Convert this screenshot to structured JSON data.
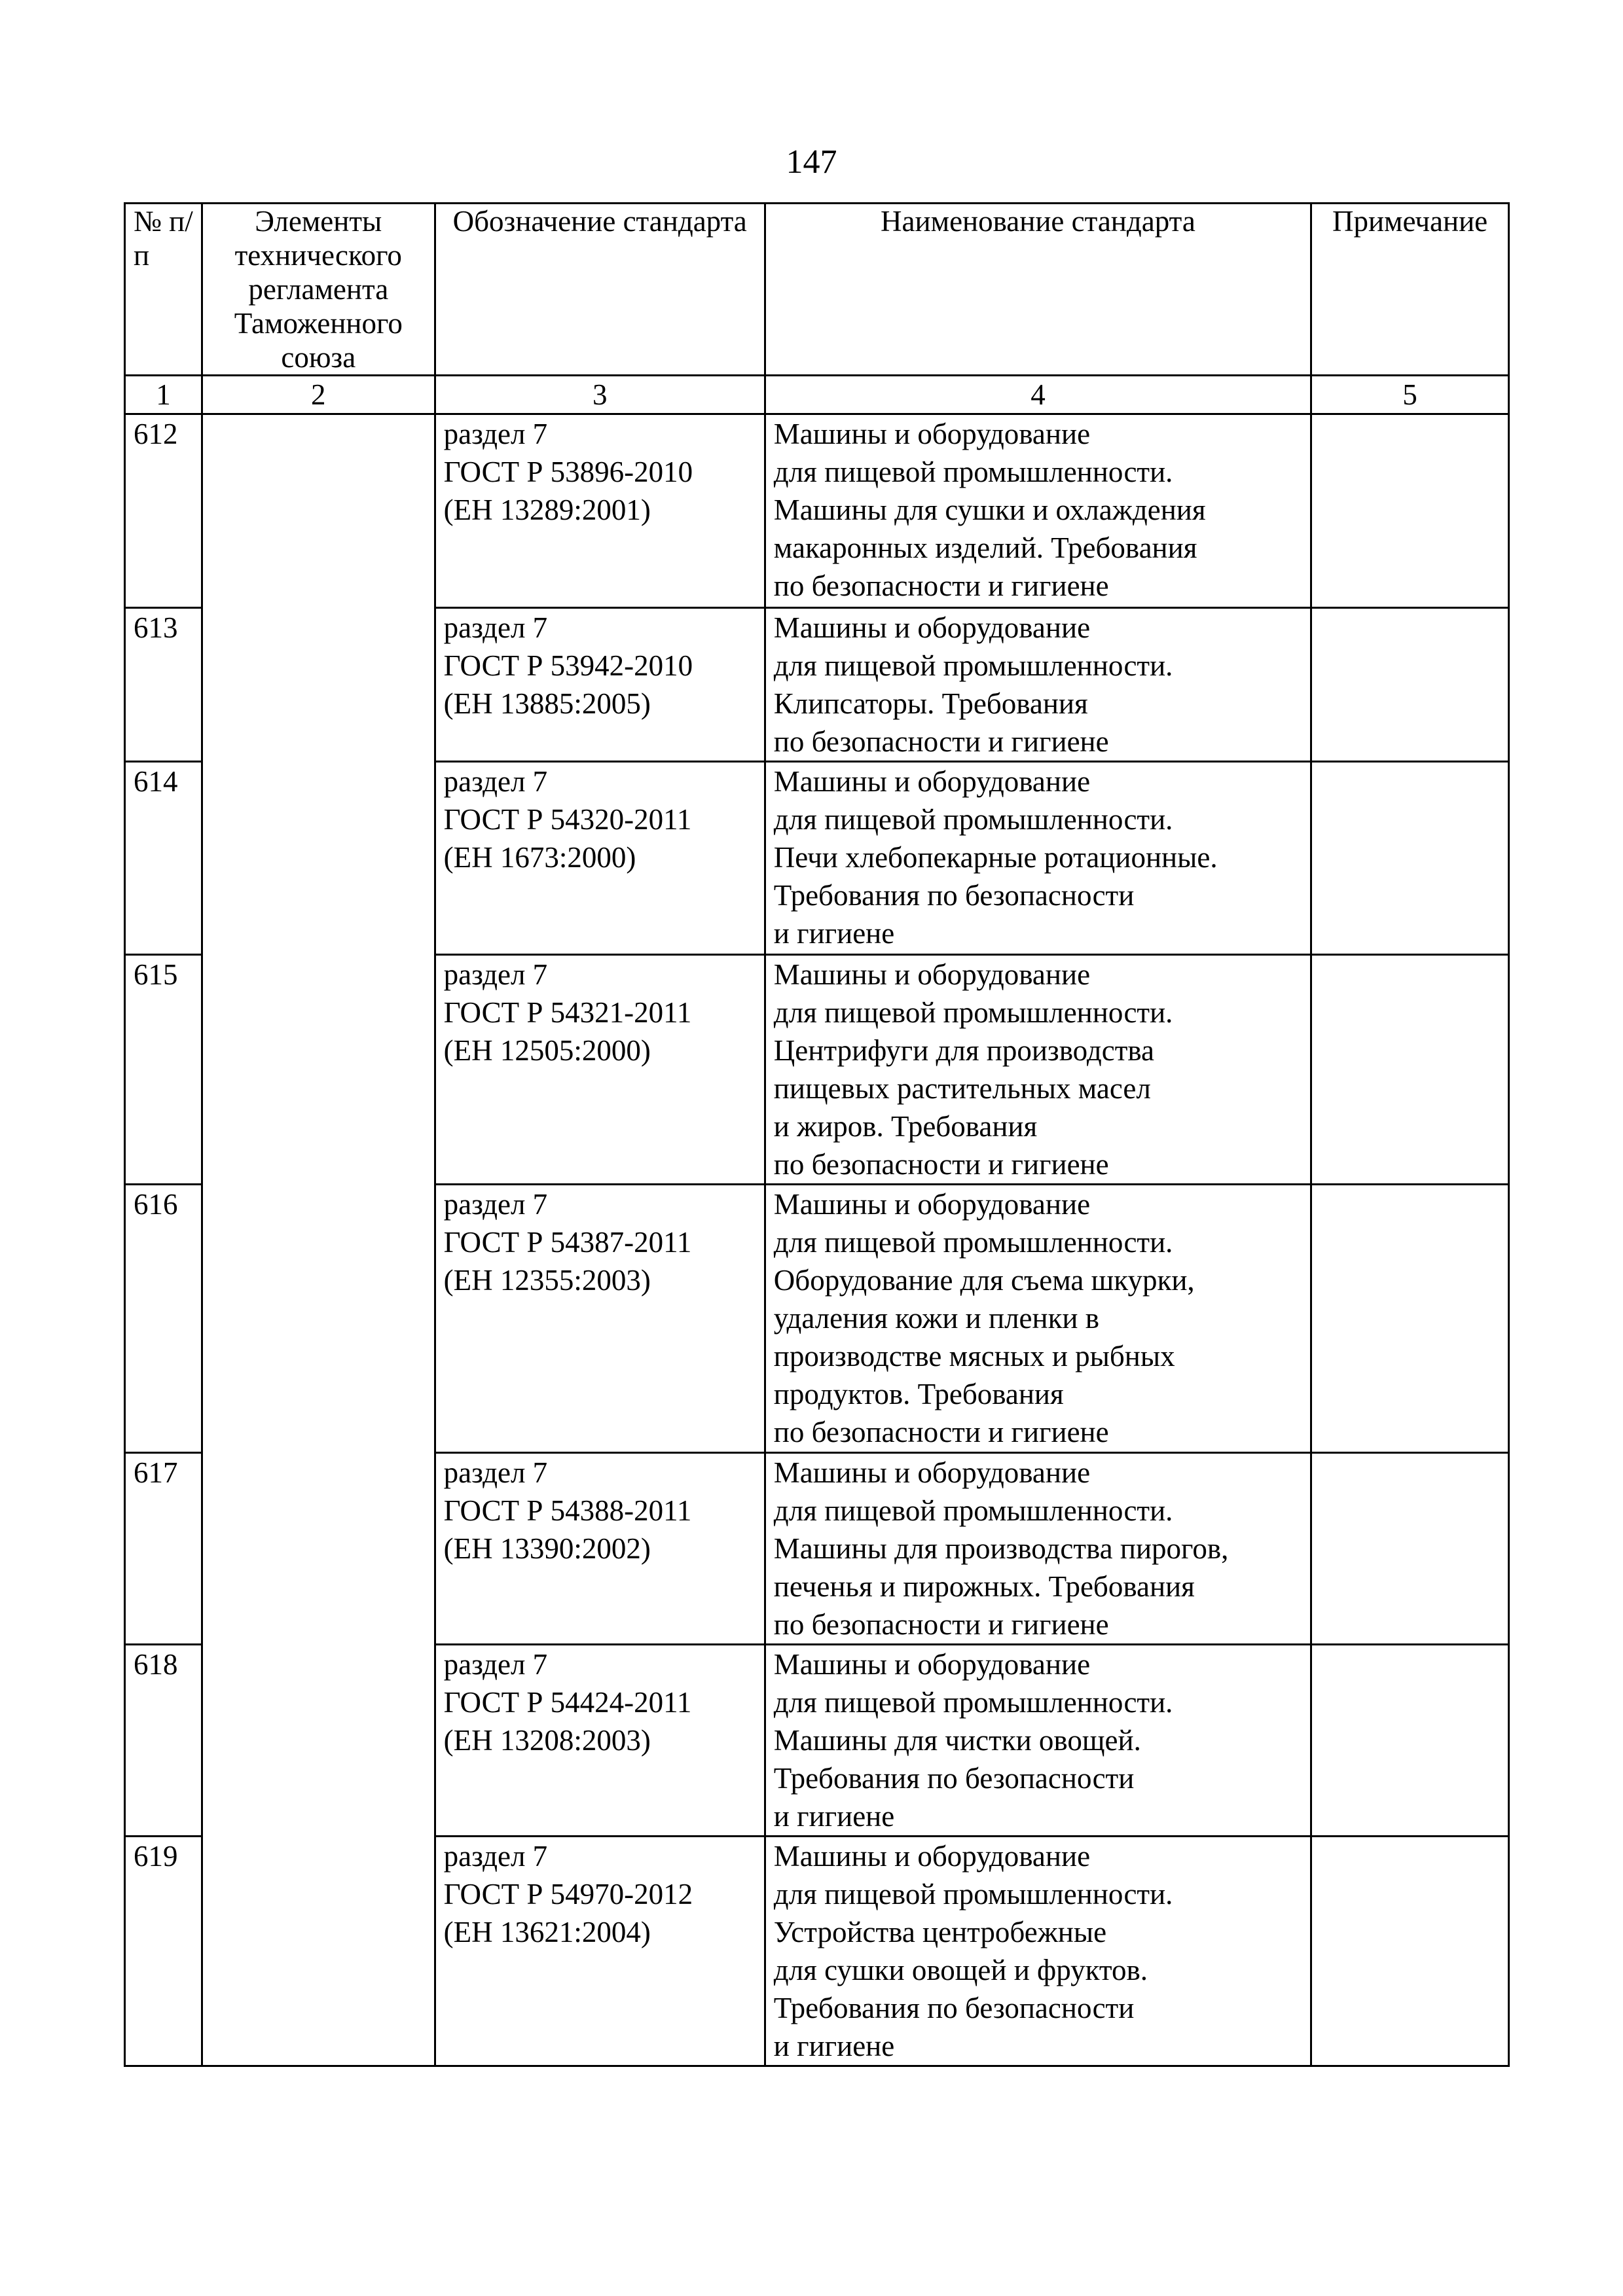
{
  "page_number": "147",
  "table": {
    "headers": [
      "№ п/п",
      "Элементы технического регламента Таможенного союза",
      "Обозначение стандарта",
      "Наименование стандарта",
      "Примечание"
    ],
    "column_numbers": [
      "1",
      "2",
      "3",
      "4",
      "5"
    ],
    "rows": [
      {
        "num": "612",
        "designation": "раздел 7\nГОСТ Р 53896-2010\n(ЕН 13289:2001)",
        "name": "Машины и оборудование\nдля пищевой промышленности.\nМашины для сушки и охлаждения\nмакаронных изделий. Требования\nпо безопасности и гигиене",
        "note": ""
      },
      {
        "num": "613",
        "designation": "раздел 7\nГОСТ Р 53942-2010\n(ЕН 13885:2005)",
        "name": "Машины и оборудование\nдля пищевой промышленности.\nКлипсаторы. Требования\nпо безопасности и гигиене",
        "note": ""
      },
      {
        "num": "614",
        "designation": "раздел 7\nГОСТ Р 54320-2011\n(ЕН 1673:2000)",
        "name": "Машины и оборудование\nдля пищевой промышленности.\nПечи хлебопекарные ротационные.\nТребования по безопасности\nи гигиене",
        "note": ""
      },
      {
        "num": "615",
        "designation": "раздел 7\nГОСТ Р 54321-2011\n(ЕН 12505:2000)",
        "name": "Машины и оборудование\nдля пищевой промышленности.\nЦентрифуги для производства\nпищевых растительных масел\nи жиров. Требования\nпо безопасности и гигиене",
        "note": ""
      },
      {
        "num": "616",
        "designation": "раздел 7\nГОСТ Р 54387-2011\n(ЕН 12355:2003)",
        "name": "Машины и оборудование\nдля пищевой промышленности.\nОборудование для съема шкурки,\nудаления кожи и пленки в\nпроизводстве мясных и рыбных\nпродуктов. Требования\nпо безопасности и гигиене",
        "note": ""
      },
      {
        "num": "617",
        "designation": "раздел 7\nГОСТ Р 54388-2011\n(ЕН 13390:2002)",
        "name": "Машины и оборудование\nдля пищевой промышленности.\nМашины для производства пирогов,\nпеченья и пирожных. Требования\nпо безопасности и гигиене",
        "note": ""
      },
      {
        "num": "618",
        "designation": "раздел 7\nГОСТ Р 54424-2011\n(ЕН 13208:2003)",
        "name": "Машины и оборудование\nдля пищевой промышленности.\nМашины для чистки овощей.\nТребования по безопасности\nи гигиене",
        "note": ""
      },
      {
        "num": "619",
        "designation": "раздел 7\nГОСТ Р 54970-2012\n(ЕН 13621:2004)",
        "name": "Машины и оборудование\nдля пищевой промышленности.\nУстройства центробежные\nдля сушки овощей и фруктов.\nТребования по безопасности\nи гигиене",
        "note": ""
      }
    ]
  }
}
